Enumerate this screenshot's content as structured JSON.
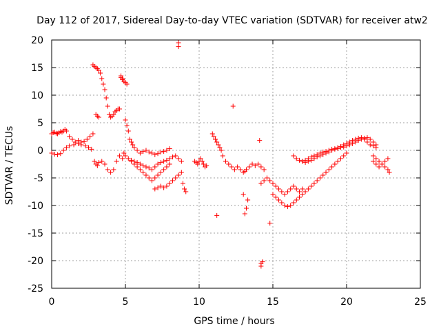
{
  "chart_data": {
    "type": "scatter",
    "title": "Day 112 of 2017, Sidereal Day-to-day VTEC variation (SDTVAR) for receiver atw2",
    "xlabel": "GPS time / hours",
    "ylabel": "SDTVAR / TECUs",
    "xlim": [
      0,
      25
    ],
    "ylim": [
      -25,
      20
    ],
    "xticks": [
      0,
      5,
      10,
      15,
      20,
      25
    ],
    "yticks": [
      20,
      15,
      10,
      5,
      0,
      -5,
      -10,
      -15,
      -20,
      -25
    ],
    "xtick_labels": [
      "0",
      "5",
      "10",
      "15",
      "20",
      "25"
    ],
    "ytick_labels": [
      "20",
      "15",
      "10",
      "5",
      "0",
      "-5",
      "-10",
      "-15",
      "-20",
      "-25"
    ],
    "grid": true,
    "marker": "plus",
    "color": "#ff0000",
    "series": [
      {
        "name": "SDTVAR",
        "x": [
          0.0,
          0.1,
          0.2,
          0.3,
          0.4,
          0.5,
          0.6,
          0.7,
          0.8,
          0.9,
          1.0,
          1.2,
          1.4,
          1.6,
          1.8,
          2.0,
          2.2,
          2.4,
          2.6,
          2.8,
          0.0,
          0.2,
          0.4,
          0.6,
          0.8,
          1.0,
          1.2,
          1.5,
          1.8,
          2.0,
          2.3,
          2.5,
          2.7,
          2.9,
          3.0,
          3.1,
          3.2,
          3.4,
          3.6,
          3.8,
          4.0,
          4.2,
          4.4,
          4.6,
          4.8,
          5.0,
          2.8,
          2.9,
          3.0,
          3.1,
          3.2,
          3.3,
          3.4,
          3.5,
          3.6,
          3.7,
          3.8,
          3.9,
          4.0,
          4.1,
          4.2,
          4.3,
          4.4,
          4.5,
          4.6,
          4.7,
          4.8,
          4.7,
          4.8,
          4.9,
          5.0,
          5.1,
          3.0,
          3.1,
          3.2,
          4.9,
          5.0,
          5.1,
          5.2,
          5.3,
          5.4,
          5.5,
          5.6,
          5.8,
          6.0,
          6.2,
          6.4,
          6.6,
          6.8,
          7.0,
          7.2,
          7.4,
          7.6,
          7.8,
          8.0,
          5.0,
          5.2,
          5.4,
          5.6,
          5.8,
          6.0,
          6.2,
          6.4,
          6.6,
          6.8,
          7.0,
          7.2,
          7.4,
          7.6,
          7.8,
          8.0,
          8.2,
          8.4,
          8.6,
          8.8,
          5.4,
          5.6,
          5.8,
          6.0,
          6.2,
          6.4,
          6.6,
          6.8,
          7.0,
          7.2,
          7.4,
          7.6,
          7.8,
          8.0,
          7.0,
          7.2,
          7.4,
          7.6,
          7.8,
          8.0,
          8.2,
          8.4,
          8.6,
          8.8,
          8.9,
          9.0,
          9.1,
          8.6,
          8.6,
          9.7,
          9.8,
          9.9,
          10.0,
          10.1,
          10.2,
          10.3,
          10.4,
          10.5,
          10.9,
          11.0,
          11.1,
          11.2,
          11.3,
          11.4,
          11.5,
          11.6,
          11.8,
          12.0,
          12.2,
          12.4,
          12.6,
          12.8,
          13.0,
          13.1,
          13.2,
          13.4,
          13.6,
          13.8,
          14.0,
          14.2,
          14.4,
          11.2,
          12.3,
          13.1,
          13.2,
          13.0,
          13.3,
          14.1,
          14.2,
          14.2,
          14.3,
          14.8,
          14.2,
          14.4,
          14.6,
          14.8,
          15.0,
          15.2,
          15.4,
          15.6,
          15.8,
          16.0,
          16.2,
          16.4,
          16.6,
          16.8,
          17.0,
          15.0,
          15.2,
          15.4,
          15.6,
          15.8,
          16.0,
          16.2,
          16.4,
          16.6,
          16.8,
          17.0,
          17.2,
          17.4,
          17.6,
          17.8,
          18.0,
          18.2,
          18.4,
          18.6,
          18.8,
          19.0,
          19.2,
          19.4,
          19.6,
          19.8,
          20.0,
          17.0,
          17.2,
          17.4,
          17.6,
          17.8,
          18.0,
          18.2,
          18.4,
          18.6,
          18.8,
          19.0,
          19.2,
          19.4,
          19.6,
          19.8,
          20.0,
          20.2,
          20.4,
          20.6,
          20.8,
          21.0,
          21.2,
          21.4,
          21.6,
          21.8,
          22.0,
          16.4,
          16.6,
          16.8,
          17.0,
          17.2,
          17.4,
          17.6,
          17.8,
          18.0,
          18.2,
          18.4,
          18.6,
          18.8,
          19.0,
          19.2,
          19.4,
          19.6,
          19.8,
          20.0,
          20.2,
          20.4,
          20.6,
          20.8,
          21.0,
          21.2,
          21.4,
          21.6,
          21.8,
          22.0,
          21.8,
          22.0,
          22.2,
          22.4,
          22.6,
          22.8,
          22.9,
          21.8,
          22.0,
          22.2,
          22.4,
          22.6,
          22.8
        ],
        "y": [
          3.0,
          3.2,
          3.3,
          3.1,
          3.0,
          3.2,
          3.4,
          3.3,
          3.5,
          3.8,
          3.5,
          2.5,
          2.0,
          1.5,
          1.8,
          1.5,
          1.6,
          2.0,
          2.5,
          3.0,
          -0.5,
          -0.7,
          -0.8,
          -0.6,
          0.0,
          0.5,
          0.8,
          1.0,
          1.2,
          1.0,
          0.8,
          0.5,
          0.2,
          -2.0,
          -2.5,
          -2.8,
          -2.2,
          -2.0,
          -2.5,
          -3.5,
          -4.0,
          -3.5,
          -2.0,
          -1.0,
          -1.5,
          -1.0,
          15.5,
          15.2,
          15.0,
          14.8,
          14.5,
          14.0,
          13.0,
          12.0,
          11.0,
          9.5,
          8.0,
          6.5,
          6.0,
          6.2,
          6.5,
          7.0,
          7.2,
          7.5,
          7.5,
          13.5,
          13.0,
          13.2,
          12.8,
          12.5,
          12.3,
          12.0,
          6.5,
          6.2,
          6.0,
          -0.5,
          5.5,
          4.5,
          3.5,
          2.0,
          1.5,
          1.0,
          0.5,
          0.0,
          -0.5,
          -0.2,
          0.0,
          -0.3,
          -0.5,
          -0.8,
          -0.6,
          -0.3,
          -0.2,
          0.0,
          0.3,
          -1.0,
          -1.5,
          -1.8,
          -2.0,
          -2.2,
          -2.5,
          -2.8,
          -3.0,
          -3.2,
          -3.5,
          -3.0,
          -2.5,
          -2.2,
          -2.0,
          -1.8,
          -1.5,
          -1.2,
          -1.0,
          -1.5,
          -2.0,
          -2.0,
          -2.5,
          -3.0,
          -3.5,
          -4.0,
          -4.5,
          -5.0,
          -5.5,
          -5.0,
          -4.5,
          -4.0,
          -3.5,
          -3.0,
          -2.5,
          -7.0,
          -6.8,
          -6.5,
          -6.8,
          -6.5,
          -6.0,
          -5.5,
          -5.0,
          -4.5,
          -4.0,
          -6.0,
          -7.0,
          -7.5,
          19.5,
          18.8,
          -2.0,
          -2.2,
          -2.5,
          -2.0,
          -1.5,
          -2.0,
          -2.5,
          -3.0,
          -2.8,
          3.0,
          2.5,
          2.0,
          1.5,
          1.0,
          0.5,
          0.0,
          -1.0,
          -2.0,
          -2.5,
          -3.0,
          -3.5,
          -3.0,
          -3.5,
          -4.0,
          -3.8,
          -3.5,
          -3.0,
          -2.5,
          -2.8,
          -2.5,
          -3.0,
          -3.5,
          -11.8,
          8.0,
          -11.5,
          -10.5,
          -8.0,
          -9.0,
          1.8,
          -20.5,
          -21.0,
          -20.2,
          -13.2,
          -6.0,
          -5.5,
          -5.0,
          -5.5,
          -6.0,
          -6.5,
          -7.0,
          -7.5,
          -8.0,
          -7.5,
          -7.0,
          -6.5,
          -7.0,
          -7.5,
          -7.0,
          -8.0,
          -8.5,
          -9.0,
          -9.5,
          -10.0,
          -10.2,
          -10.0,
          -9.5,
          -9.0,
          -8.5,
          -8.0,
          -7.5,
          -7.0,
          -6.5,
          -6.0,
          -5.5,
          -5.0,
          -4.5,
          -4.0,
          -3.5,
          -3.0,
          -2.5,
          -2.0,
          -1.5,
          -1.0,
          -0.5,
          -2.0,
          -1.8,
          -1.5,
          -1.2,
          -1.0,
          -0.8,
          -0.5,
          -0.3,
          -0.2,
          0.0,
          0.2,
          0.3,
          0.5,
          0.7,
          1.0,
          1.2,
          1.5,
          1.8,
          2.0,
          2.2,
          2.3,
          2.0,
          1.5,
          1.0,
          0.8,
          0.5,
          -1.0,
          -1.5,
          -1.8,
          -2.0,
          -2.2,
          -2.0,
          -1.8,
          -1.5,
          -1.2,
          -1.0,
          -0.8,
          -0.5,
          -0.3,
          0.0,
          0.2,
          0.3,
          0.5,
          0.6,
          0.8,
          1.0,
          1.2,
          1.5,
          1.8,
          2.0,
          2.2,
          2.3,
          2.0,
          1.5,
          1.0,
          -1.0,
          -1.5,
          -2.0,
          -2.5,
          -3.0,
          -3.5,
          -4.0,
          -2.0,
          -2.5,
          -3.0,
          -2.5,
          -2.0,
          -1.5
        ]
      }
    ]
  }
}
